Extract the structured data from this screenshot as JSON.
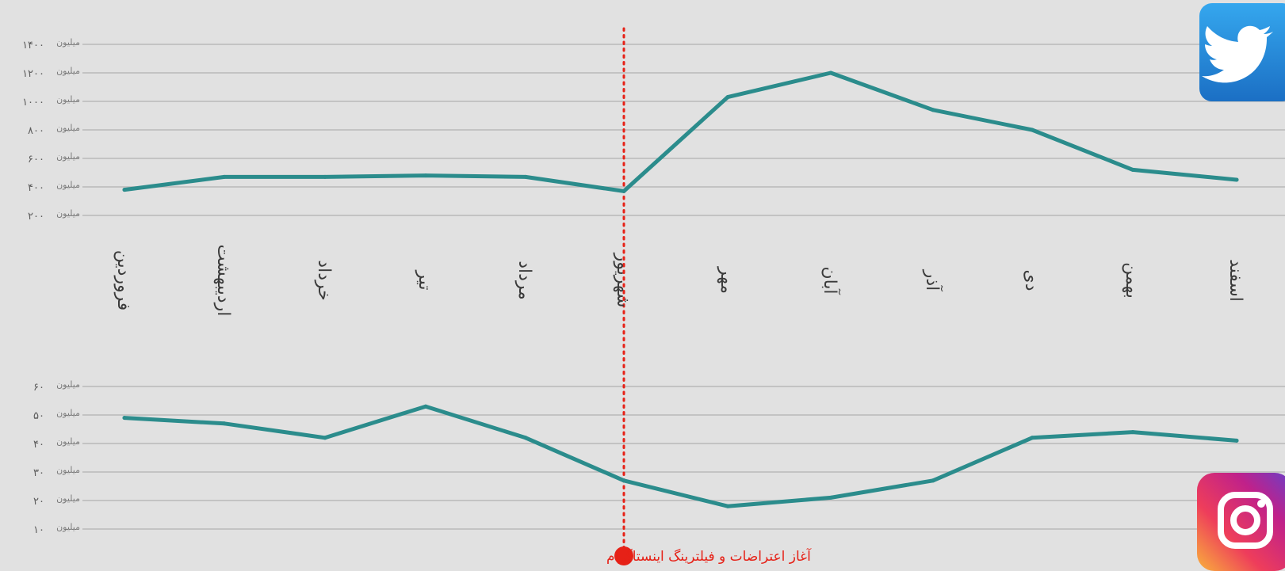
{
  "months": [
    "فروردین",
    "اردیبهشت",
    "خرداد",
    "تیر",
    "مرداد",
    "شهریور",
    "مهر",
    "آبان",
    "آذر",
    "دی",
    "بهمن",
    "اسفند"
  ],
  "annotation": "آغاز اعتراضات و فیلترینگ اینستاگرام",
  "colors": {
    "line": "#2b8c8c",
    "grid": "#b9b9b9",
    "annotation": "#e62117"
  },
  "icons": {
    "twitter": "twitter-logo-icon",
    "instagram": "instagram-logo-icon"
  },
  "chart_data": [
    {
      "type": "line",
      "platform": "twitter",
      "categories": [
        "فروردین",
        "اردیبهشت",
        "خرداد",
        "تیر",
        "مرداد",
        "شهریور",
        "مهر",
        "آبان",
        "آذر",
        "دی",
        "بهمن",
        "اسفند"
      ],
      "values": [
        380,
        470,
        470,
        480,
        470,
        370,
        1030,
        1200,
        940,
        800,
        520,
        450
      ],
      "ylim": [
        200,
        1400
      ],
      "yticks": [
        {
          "value": 1400,
          "label": "۱۴۰۰",
          "unit": "میلیون"
        },
        {
          "value": 1200,
          "label": "۱۲۰۰",
          "unit": "میلیون"
        },
        {
          "value": 1000,
          "label": "۱۰۰۰",
          "unit": "میلیون"
        },
        {
          "value": 800,
          "label": "۸۰۰",
          "unit": "میلیون"
        },
        {
          "value": 600,
          "label": "۶۰۰",
          "unit": "میلیون"
        },
        {
          "value": 400,
          "label": "۴۰۰",
          "unit": "میلیون"
        },
        {
          "value": 200,
          "label": "۲۰۰",
          "unit": "میلیون"
        }
      ],
      "grid": true
    },
    {
      "type": "line",
      "platform": "instagram",
      "categories": [
        "فروردین",
        "اردیبهشت",
        "خرداد",
        "تیر",
        "مرداد",
        "شهریور",
        "مهر",
        "آبان",
        "آذر",
        "دی",
        "بهمن",
        "اسفند"
      ],
      "values": [
        49,
        47,
        42,
        53,
        42,
        27,
        18,
        21,
        27,
        42,
        44,
        41
      ],
      "ylim": [
        10,
        60
      ],
      "yticks": [
        {
          "value": 60,
          "label": "۶۰",
          "unit": "میلیون"
        },
        {
          "value": 50,
          "label": "۵۰",
          "unit": "میلیون"
        },
        {
          "value": 40,
          "label": "۴۰",
          "unit": "میلیون"
        },
        {
          "value": 30,
          "label": "۳۰",
          "unit": "میلیون"
        },
        {
          "value": 20,
          "label": "۲۰",
          "unit": "میلیون"
        },
        {
          "value": 10,
          "label": "۱۰",
          "unit": "میلیون"
        }
      ],
      "grid": true
    }
  ]
}
